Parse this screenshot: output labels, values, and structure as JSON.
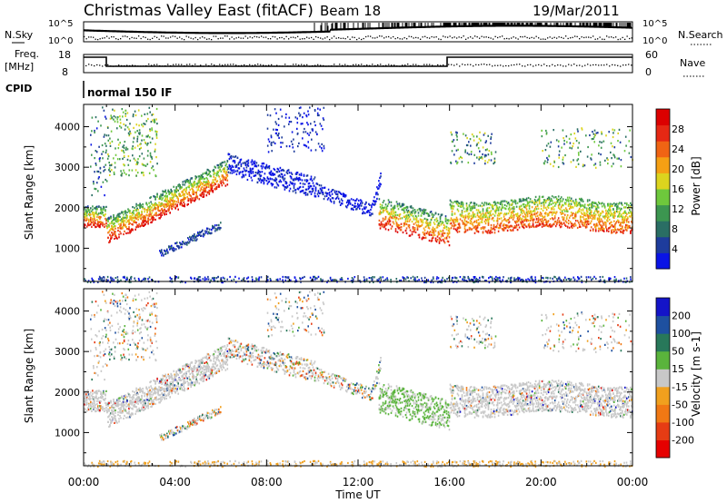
{
  "header": {
    "station": "Christmas Valley East (fitACF)",
    "beam": "Beam 18",
    "date": "19/Mar/2011"
  },
  "noise_panel": {
    "left_label": "N.Sky",
    "right_label": "N.Search",
    "left_ticks": [
      "10^5",
      "10^0"
    ],
    "right_ticks": [
      "10^5",
      "10^0"
    ]
  },
  "freq_panel": {
    "left_label_1": "Freq.",
    "left_label_2": "[MHz]",
    "right_label": "Nave",
    "left_ticks": [
      "18",
      "8"
    ],
    "right_ticks": [
      "60",
      "0"
    ]
  },
  "cpid": {
    "label": "CPID",
    "mode": "normal 150 IF"
  },
  "x_axis": {
    "title": "Time UT",
    "ticks": [
      "00:00",
      "04:00",
      "08:00",
      "12:00",
      "16:00",
      "20:00",
      "00:00"
    ],
    "tick_hours": [
      0,
      4,
      8,
      12,
      16,
      20,
      24
    ]
  },
  "y_axis": {
    "title": "Slant Range [km]",
    "ticks": [
      "1000",
      "2000",
      "3000",
      "4000"
    ],
    "tick_values": [
      1000,
      2000,
      3000,
      4000
    ]
  },
  "chart_data": [
    {
      "type": "heatmap",
      "quantity": "Power",
      "colorbar_title": "Power [dB]",
      "colorbar_ticks": [
        "4",
        "8",
        "12",
        "16",
        "20",
        "24",
        "28"
      ],
      "colorbar_tick_values": [
        4,
        8,
        12,
        16,
        20,
        24,
        28
      ],
      "colormap": [
        "#0a14e6",
        "#1e3c9c",
        "#2a6e64",
        "#3c9650",
        "#6ec83c",
        "#dcd41e",
        "#f5a014",
        "#f06414",
        "#e62814",
        "#dc0000"
      ],
      "x_range_hours": [
        0,
        24
      ],
      "y_range_km": [
        180,
        4550
      ],
      "features": [
        {
          "name": "early F-region band",
          "t_start": 0.0,
          "t_end": 1.0,
          "range_km": [
            1550,
            2100
          ]
        },
        {
          "name": "rising band",
          "t_start": 1.0,
          "t_end": 6.3,
          "range_start_km": 1100,
          "range_end_km": 3200
        },
        {
          "name": "secondary rising band",
          "t_start": 3.3,
          "t_end": 6.0,
          "range_start_km": 850,
          "range_end_km": 1650
        },
        {
          "name": "descending echo",
          "t_start": 6.3,
          "t_end": 12.6,
          "range_start_km": 3000,
          "range_end_km": 1900
        },
        {
          "name": "post-midday band",
          "t_start": 12.8,
          "t_end": 16.0,
          "range_start_km": 2100,
          "range_end_km": 1150
        },
        {
          "name": "evening band",
          "t_start": 16.0,
          "t_end": 24.0,
          "range_km": [
            1450,
            2300
          ]
        }
      ]
    },
    {
      "type": "heatmap",
      "quantity": "Velocity",
      "colorbar_title": "Velocity [m s-1]",
      "colorbar_ticks": [
        "200",
        "100",
        "50",
        "15",
        "-15",
        "-50",
        "-100",
        "-200"
      ],
      "colorbar_tick_values": [
        200,
        100,
        50,
        15,
        -15,
        -50,
        -100,
        -200
      ],
      "colormap": [
        "#1414c8",
        "#1e50a0",
        "#28785a",
        "#5ab43c",
        "#c8c8c8",
        "#f0a01e",
        "#f07814",
        "#e63c14",
        "#e60000"
      ],
      "x_range_hours": [
        0,
        24
      ],
      "y_range_km": [
        180,
        4550
      ]
    }
  ]
}
